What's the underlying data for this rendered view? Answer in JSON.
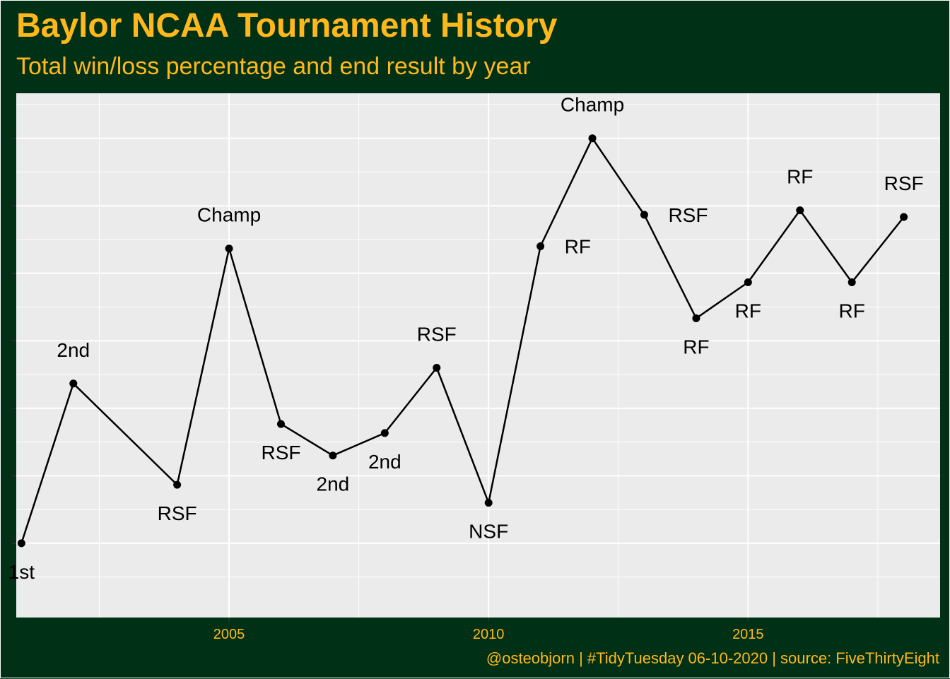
{
  "colors": {
    "background": "#003015",
    "panel": "#EBEBEB",
    "gridline": "#FFFFFF",
    "accent": "#FFB81C",
    "line": "#000000"
  },
  "chart_data": {
    "type": "line",
    "title": "Baylor NCAA Tournament History",
    "subtitle": "Total win/loss percentage and end result by year",
    "caption": "@osteobjorn | #TidyTuesday 06-10-2020 | source: FiveThirtyEight",
    "xlabel": "",
    "ylabel": "",
    "x_ticks": [
      2005,
      2010,
      2015
    ],
    "xlim": [
      2000.9,
      2018.7
    ],
    "ylim": [
      0.667,
      0.9
    ],
    "y_gridlines": [
      0.7,
      0.73,
      0.76,
      0.79,
      0.82,
      0.85,
      0.88
    ],
    "y_tick_labels_shown": false,
    "grid": true,
    "legend": "none",
    "series": [
      {
        "points": [
          {
            "x": 2001,
            "y": 0.7,
            "label": "1st",
            "label_pos": "below"
          },
          {
            "x": 2002,
            "y": 0.771,
            "label": "2nd",
            "label_pos": "above"
          },
          {
            "x": 2004,
            "y": 0.726,
            "label": "RSF",
            "label_pos": "below"
          },
          {
            "x": 2005,
            "y": 0.831,
            "label": "Champ",
            "label_pos": "above"
          },
          {
            "x": 2006,
            "y": 0.753,
            "label": "RSF",
            "label_pos": "below"
          },
          {
            "x": 2007,
            "y": 0.739,
            "label": "2nd",
            "label_pos": "below"
          },
          {
            "x": 2008,
            "y": 0.749,
            "label": "2nd",
            "label_pos": "below-right"
          },
          {
            "x": 2009,
            "y": 0.778,
            "label": "RSF",
            "label_pos": "above"
          },
          {
            "x": 2010,
            "y": 0.718,
            "label": "NSF",
            "label_pos": "below"
          },
          {
            "x": 2011,
            "y": 0.832,
            "label": "RF",
            "label_pos": "right"
          },
          {
            "x": 2012,
            "y": 0.88,
            "label": "Champ",
            "label_pos": "above"
          },
          {
            "x": 2013,
            "y": 0.846,
            "label": "RSF",
            "label_pos": "right"
          },
          {
            "x": 2014,
            "y": 0.8,
            "label": "RF",
            "label_pos": "below"
          },
          {
            "x": 2015,
            "y": 0.816,
            "label": "RF",
            "label_pos": "below"
          },
          {
            "x": 2016,
            "y": 0.848,
            "label": "RF",
            "label_pos": "above"
          },
          {
            "x": 2017,
            "y": 0.816,
            "label": "RF",
            "label_pos": "below"
          },
          {
            "x": 2018,
            "y": 0.845,
            "label": "RSF",
            "label_pos": "above"
          }
        ]
      }
    ]
  }
}
